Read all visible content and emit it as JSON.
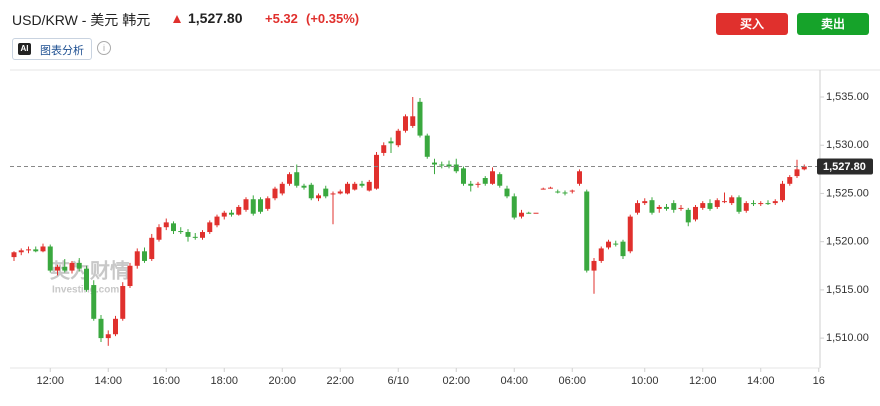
{
  "header": {
    "symbol": "USD/KRW - 美元 韩元",
    "price": "1,527.80",
    "change": "+5.32",
    "change_pct": "(+0.35%)",
    "buy": "买入",
    "sell": "卖出",
    "ai_badge": "AI",
    "ai_label": "图表分析"
  },
  "chart_data": {
    "type": "candlestick",
    "watermark": [
      "英为财情",
      "Investing.com"
    ],
    "open": [
      1518.4,
      1518.9,
      1519.1,
      1519.2,
      1519.0,
      1519.5,
      1517.0,
      1517.4,
      1517.0,
      1517.8,
      1517.2,
      1515.5,
      1512.0,
      1510.0,
      1510.4,
      1512.0,
      1515.4,
      1517.5,
      1519.0,
      1518.2,
      1520.2,
      1521.5,
      1521.9,
      1521.1,
      1521.0,
      1520.5,
      1520.4,
      1521.0,
      1521.7,
      1522.6,
      1523.0,
      1522.8,
      1523.3,
      1524.4,
      1524.4,
      1523.4,
      1524.5,
      1525.0,
      1526.0,
      1527.2,
      1525.8,
      1525.9,
      1524.5,
      1525.5,
      1524.9,
      1525.0,
      1525.0,
      1525.4,
      1526.0,
      1525.3,
      1525.5,
      1529.2,
      1530.4,
      1530.0,
      1531.5,
      1532.0,
      1534.5,
      1531.0,
      1528.2,
      1528.0,
      1528.0,
      1528.0,
      1527.6,
      1526.0,
      1525.9,
      1526.6,
      1526.0,
      1527.0,
      1525.5,
      1524.7,
      1522.6,
      1523.0,
      1523.0,
      1525.5,
      1525.6,
      1525.2,
      1525.1,
      1525.2,
      1526.0,
      1525.2,
      1517.0,
      1518.0,
      1519.4,
      1519.8,
      1520.0,
      1519.0,
      1523.0,
      1524.0,
      1524.3,
      1523.4,
      1523.6,
      1524.0,
      1523.4,
      1523.3,
      1522.3,
      1523.5,
      1524.0,
      1523.6,
      1524.2,
      1524.0,
      1524.6,
      1523.2,
      1524.0,
      1523.9,
      1524.0,
      1524.0,
      1524.3,
      1526.0,
      1526.8,
      1527.5
    ],
    "high": [
      1519.0,
      1519.3,
      1519.5,
      1519.5,
      1519.8,
      1519.7,
      1517.6,
      1518.2,
      1518.0,
      1518.3,
      1517.5,
      1516.0,
      1512.4,
      1510.8,
      1512.3,
      1515.8,
      1517.8,
      1519.3,
      1519.4,
      1520.8,
      1521.8,
      1522.4,
      1522.1,
      1521.5,
      1521.3,
      1520.9,
      1521.2,
      1522.2,
      1522.8,
      1523.2,
      1523.3,
      1523.8,
      1524.6,
      1524.8,
      1524.6,
      1524.7,
      1525.7,
      1526.2,
      1527.2,
      1528.0,
      1526.0,
      1526.1,
      1525.0,
      1525.8,
      1525.2,
      1525.4,
      1526.2,
      1526.2,
      1526.3,
      1526.4,
      1529.3,
      1530.3,
      1530.8,
      1531.7,
      1533.2,
      1535.0,
      1534.9,
      1531.2,
      1528.6,
      1528.3,
      1528.4,
      1528.6,
      1527.8,
      1526.3,
      1526.2,
      1526.8,
      1527.7,
      1527.2,
      1525.8,
      1525.0,
      1523.3,
      1523.1,
      1523.0,
      1525.6,
      1525.7,
      1525.4,
      1525.3,
      1525.4,
      1527.5,
      1525.4,
      1518.3,
      1519.5,
      1520.2,
      1520.1,
      1520.2,
      1522.8,
      1524.3,
      1524.5,
      1524.6,
      1523.8,
      1523.9,
      1524.3,
      1523.8,
      1523.5,
      1523.8,
      1524.2,
      1524.4,
      1524.5,
      1525.1,
      1524.8,
      1524.8,
      1524.2,
      1524.3,
      1524.2,
      1524.3,
      1524.4,
      1526.3,
      1526.9,
      1528.5,
      1528.0
    ],
    "low": [
      1518.0,
      1518.6,
      1518.8,
      1518.9,
      1518.9,
      1516.8,
      1516.5,
      1516.8,
      1516.7,
      1516.9,
      1514.8,
      1511.8,
      1509.6,
      1509.2,
      1510.2,
      1511.8,
      1515.2,
      1517.2,
      1517.8,
      1518.0,
      1520.0,
      1521.2,
      1520.8,
      1520.8,
      1520.0,
      1520.2,
      1520.2,
      1520.8,
      1521.5,
      1522.3,
      1522.6,
      1522.7,
      1523.1,
      1522.7,
      1522.9,
      1523.2,
      1524.3,
      1524.8,
      1525.8,
      1525.6,
      1525.4,
      1524.3,
      1524.2,
      1524.5,
      1521.8,
      1524.9,
      1524.9,
      1525.3,
      1525.6,
      1525.2,
      1525.4,
      1528.9,
      1529.2,
      1529.8,
      1531.3,
      1531.8,
      1530.8,
      1528.6,
      1527.0,
      1527.6,
      1527.6,
      1527.1,
      1525.8,
      1525.2,
      1525.6,
      1525.8,
      1525.9,
      1525.6,
      1524.5,
      1522.3,
      1522.4,
      1522.9,
      1523.0,
      1525.4,
      1525.5,
      1525.0,
      1524.8,
      1525.0,
      1525.8,
      1516.8,
      1514.6,
      1517.8,
      1519.2,
      1519.5,
      1518.2,
      1518.8,
      1522.8,
      1523.8,
      1522.8,
      1523.0,
      1523.2,
      1523.0,
      1523.2,
      1521.6,
      1522.1,
      1523.3,
      1523.2,
      1523.4,
      1524.0,
      1523.8,
      1522.9,
      1523.0,
      1523.7,
      1523.7,
      1523.8,
      1523.8,
      1524.1,
      1525.8,
      1526.6,
      1527.4
    ],
    "close": [
      1518.9,
      1519.1,
      1519.2,
      1519.0,
      1519.5,
      1517.0,
      1517.4,
      1517.0,
      1517.8,
      1517.2,
      1515.0,
      1512.0,
      1510.0,
      1510.4,
      1512.0,
      1515.4,
      1517.5,
      1519.0,
      1518.0,
      1520.4,
      1521.5,
      1522.0,
      1521.1,
      1521.0,
      1520.5,
      1520.4,
      1521.0,
      1522.0,
      1522.6,
      1523.0,
      1522.8,
      1523.6,
      1524.4,
      1522.9,
      1523.1,
      1524.5,
      1525.5,
      1526.0,
      1527.0,
      1525.8,
      1525.6,
      1524.5,
      1524.8,
      1524.7,
      1525.0,
      1525.2,
      1526.0,
      1526.0,
      1525.8,
      1526.2,
      1529.0,
      1530.0,
      1530.2,
      1531.5,
      1533.0,
      1533.0,
      1531.0,
      1528.8,
      1528.0,
      1527.9,
      1527.8,
      1527.3,
      1526.0,
      1525.8,
      1526.0,
      1526.0,
      1527.3,
      1525.8,
      1524.7,
      1522.5,
      1523.0,
      1522.9,
      1523.0,
      1525.5,
      1525.6,
      1525.1,
      1525.0,
      1525.3,
      1527.3,
      1517.0,
      1518.0,
      1519.3,
      1520.0,
      1519.7,
      1518.5,
      1522.6,
      1524.0,
      1524.2,
      1523.0,
      1523.6,
      1523.4,
      1523.3,
      1523.5,
      1522.0,
      1523.6,
      1524.0,
      1523.4,
      1524.3,
      1524.2,
      1524.6,
      1523.1,
      1524.0,
      1523.9,
      1524.0,
      1523.9,
      1524.2,
      1526.0,
      1526.7,
      1527.5,
      1527.8
    ],
    "up_color": "#e0302d",
    "down_color": "#3aa83f",
    "ylim": [
      1506.9,
      1537.8
    ],
    "yticks": [
      {
        "value": 1510,
        "label": "1,510.00"
      },
      {
        "value": 1515,
        "label": "1,515.00"
      },
      {
        "value": 1520,
        "label": "1,520.00"
      },
      {
        "value": 1525,
        "label": "1,525.00"
      },
      {
        "value": 1530,
        "label": "1,530.00"
      },
      {
        "value": 1535,
        "label": "1,535.00"
      }
    ],
    "xticks": [
      {
        "value": 5,
        "label": "12:00"
      },
      {
        "value": 13,
        "label": "14:00"
      },
      {
        "value": 21,
        "label": "16:00"
      },
      {
        "value": 29,
        "label": "18:00"
      },
      {
        "value": 37,
        "label": "20:00"
      },
      {
        "value": 45,
        "label": "22:00"
      },
      {
        "value": 53,
        "label": "6/10"
      },
      {
        "value": 61,
        "label": "02:00"
      },
      {
        "value": 69,
        "label": "04:00"
      },
      {
        "value": 77,
        "label": "06:00"
      },
      {
        "value": 87,
        "label": "10:00"
      },
      {
        "value": 95,
        "label": "12:00"
      },
      {
        "value": 103,
        "label": "14:00"
      },
      {
        "value": 111,
        "label": "16"
      }
    ],
    "last_price": {
      "value": 1527.8,
      "label": "1,527.80"
    }
  }
}
